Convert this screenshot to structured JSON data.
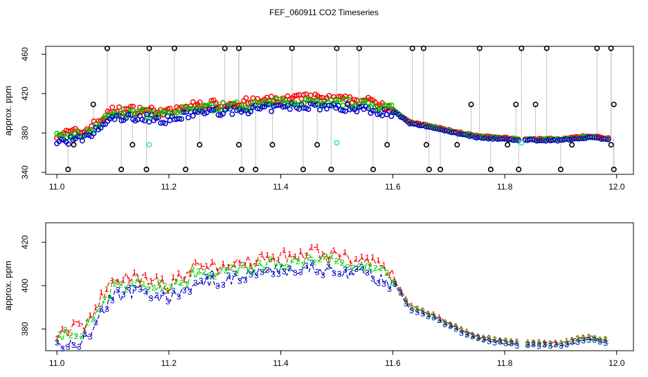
{
  "page_title": "FEF_060911  CO2 Timeseries",
  "colors": {
    "black": "#000000",
    "red": "#ff0000",
    "green": "#00cc00",
    "blue": "#0000cc",
    "cyan": "#33dddd",
    "connector": "#888888"
  },
  "chart_data": [
    {
      "type": "scatter",
      "title": "FEF_060911  CO2 Timeseries",
      "xlabel": "",
      "ylabel": "approx. ppm",
      "xlim": [
        10.98,
        12.03
      ],
      "ylim": [
        338,
        468
      ],
      "xticks": [
        11.0,
        11.2,
        11.4,
        11.6,
        11.8,
        12.0
      ],
      "xtick_labels": [
        "11.0",
        "11.2",
        "11.4",
        "11.6",
        "11.8",
        "12.0"
      ],
      "yticks": [
        340,
        380,
        420,
        460
      ],
      "ytick_labels": [
        "340",
        "380",
        "420",
        "460"
      ],
      "series": [
        {
          "name": "black",
          "color": "#000000",
          "marker": "o"
        },
        {
          "name": "red",
          "color": "#ff0000",
          "marker": "o"
        },
        {
          "name": "green",
          "color": "#00cc00",
          "marker": "o"
        },
        {
          "name": "blue",
          "color": "#0000cc",
          "marker": "o"
        },
        {
          "name": "cyan",
          "color": "#33dddd",
          "marker": "o"
        }
      ],
      "outliers_high": [
        11.09,
        11.165,
        11.21,
        11.3,
        11.325,
        11.42,
        11.5,
        11.54,
        11.635,
        11.655,
        11.755,
        11.83,
        11.875,
        11.965,
        11.99
      ],
      "outliers_low": [
        11.02,
        11.115,
        11.16,
        11.23,
        11.33,
        11.355,
        11.44,
        11.49,
        11.565,
        11.665,
        11.685,
        11.775,
        11.825,
        11.9,
        11.995
      ],
      "outliers_mid_hi": [
        11.065,
        11.74,
        11.82,
        11.855,
        11.995
      ],
      "outliers_mid_lo": [
        11.03,
        11.135,
        11.255,
        11.325,
        11.385,
        11.465,
        11.59,
        11.66,
        11.715,
        11.805,
        11.92,
        11.99
      ],
      "cyan_points": [
        [
          11.165,
          368
        ],
        [
          11.5,
          370
        ],
        [
          11.83,
          370
        ]
      ]
    },
    {
      "type": "line",
      "title": "",
      "xlabel": "",
      "ylabel": "approx. ppm",
      "xlim": [
        10.98,
        12.03
      ],
      "ylim": [
        370,
        429
      ],
      "xticks": [
        11.0,
        11.2,
        11.4,
        11.6,
        11.8,
        12.0
      ],
      "xtick_labels": [
        "11.0",
        "11.2",
        "11.4",
        "11.6",
        "11.8",
        "12.0"
      ],
      "yticks": [
        380,
        400,
        420
      ],
      "ytick_labels": [
        "380",
        "400",
        "420"
      ],
      "series": [
        {
          "name": "1",
          "label": "1",
          "color": "#ff0000"
        },
        {
          "name": "2",
          "label": "2",
          "color": "#00cc00"
        },
        {
          "name": "3",
          "label": "3",
          "color": "#0000cc"
        }
      ],
      "curve_x": [
        11.0,
        11.05,
        11.1,
        11.15,
        11.2,
        11.25,
        11.3,
        11.35,
        11.4,
        11.45,
        11.5,
        11.55,
        11.6,
        11.63,
        11.67,
        11.7,
        11.75,
        11.8,
        11.83,
        11.9,
        11.95,
        11.985
      ],
      "curve_y": [
        375,
        378,
        399,
        400,
        397,
        405,
        406,
        408,
        410,
        412,
        410,
        409,
        403,
        390,
        386,
        382,
        376,
        374,
        373,
        373,
        376,
        374
      ],
      "gap": [
        11.825,
        11.835
      ]
    }
  ]
}
